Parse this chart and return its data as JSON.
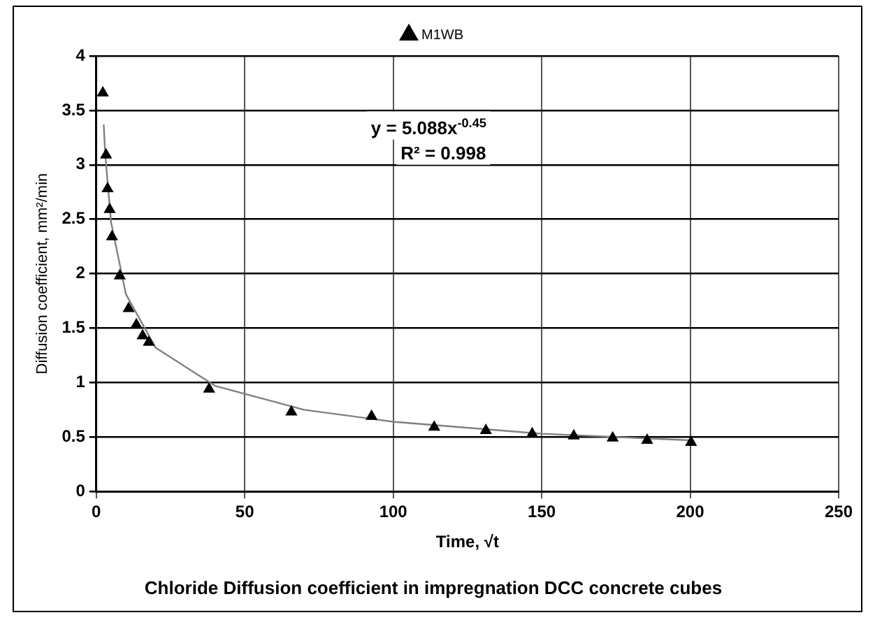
{
  "chart_data": {
    "type": "scatter",
    "title": "Chloride Diffusion coefficient in impregnation DCC concrete cubes",
    "xlabel": "Time, √t",
    "ylabel": "Diffusion coefficient, mm²/min",
    "annotations": [
      "y = 5.088x$^{-0.45}$",
      "R² = 0.998"
    ],
    "xlim": [
      0,
      250
    ],
    "xticks": [
      0,
      50,
      100,
      150,
      200,
      250
    ],
    "ylim": [
      0,
      4
    ],
    "yticks": [
      0,
      0.5,
      1,
      1.5,
      2,
      2.5,
      3,
      3.5,
      4
    ],
    "grid": true,
    "legend": "top",
    "marker": "triangle",
    "series": [
      {
        "name": "M1WB",
        "type": "scatter",
        "color": "#000000",
        "x": [
          2.2,
          3.3,
          3.8,
          4.5,
          5.3,
          7.9,
          10.9,
          13.5,
          15.6,
          17.7,
          38.0,
          65.7,
          92.7,
          113.8,
          131.2,
          146.8,
          160.8,
          173.9,
          185.5,
          200.3
        ],
        "values": [
          3.66,
          3.09,
          2.78,
          2.59,
          2.34,
          1.98,
          1.68,
          1.53,
          1.43,
          1.37,
          0.94,
          0.73,
          0.69,
          0.59,
          0.56,
          0.53,
          0.51,
          0.49,
          0.47,
          0.45
        ]
      },
      {
        "type": "line",
        "color": "#808080",
        "marker": "none",
        "x": [
          2.5,
          3,
          5,
          10,
          20,
          40,
          70,
          100,
          150,
          200
        ],
        "values": [
          3.37,
          3.1,
          2.47,
          1.81,
          1.32,
          0.97,
          0.75,
          0.64,
          0.53,
          0.47
        ]
      }
    ]
  }
}
